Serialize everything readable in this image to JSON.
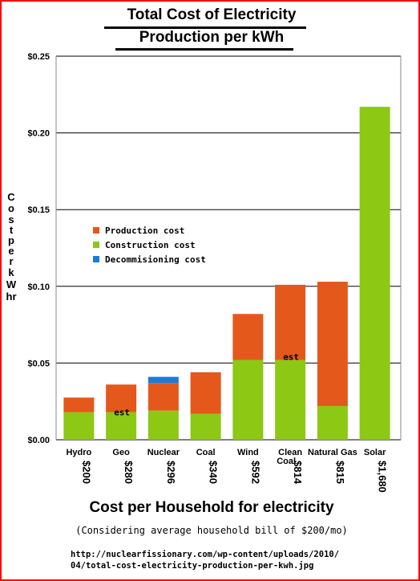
{
  "chart_data": {
    "type": "bar",
    "stacked": true,
    "title_line1": "Total Cost of Electricity",
    "title_line2": "Production per kWh",
    "ylabel": "Cost per kWhr",
    "categories": [
      "Hydro",
      "Geo",
      "Nuclear",
      "Coal",
      "Wind",
      "Clean Coal",
      "Natural Gas",
      "Solar"
    ],
    "household_costs": [
      "$200",
      "$280",
      "$296",
      "$340",
      "$592",
      "$814",
      "$815",
      "$1,680"
    ],
    "series": [
      {
        "name": "Construction cost",
        "color": "#8cc814",
        "values": [
          0.018,
          0.018,
          0.019,
          0.017,
          0.052,
          0.052,
          0.022,
          0.217
        ]
      },
      {
        "name": "Production cost",
        "color": "#e4581c",
        "values": [
          0.0095,
          0.018,
          0.018,
          0.027,
          0.03,
          0.049,
          0.081,
          0
        ]
      },
      {
        "name": "Decommisioning cost",
        "color": "#1c7ad8",
        "values": [
          0,
          0,
          0.004,
          0,
          0,
          0,
          0,
          0
        ]
      }
    ],
    "yticks": [
      "$0.00",
      "$0.05",
      "$0.10",
      "$0.15",
      "$0.20",
      "$0.25"
    ],
    "ylim": [
      0,
      0.25
    ],
    "grid": true,
    "legend_order": [
      "Production cost",
      "Construction cost",
      "Decommisioning cost"
    ],
    "legend_placement": "left-middle",
    "annotations": [
      {
        "category": "Geo",
        "text": "est"
      },
      {
        "category": "Clean Coal",
        "text": "est"
      }
    ]
  },
  "footer": {
    "heading": "Cost per Household for electricity",
    "subheading": "(Considering average household bill of $200/mo)",
    "url_line1": "http://nuclearfissionary.com/wp-content/uploads/2010/",
    "url_line2": "04/total-cost-electricity-production-per-kwh.jpg"
  }
}
